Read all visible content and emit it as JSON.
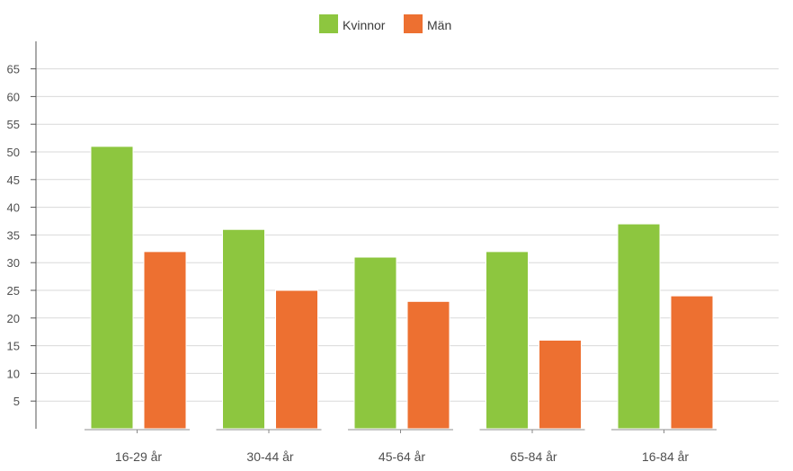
{
  "chart_data": {
    "type": "bar",
    "categories": [
      "16-29 år",
      "30-44 år",
      "45-64 år",
      "65-84 år",
      "16-84 år"
    ],
    "series": [
      {
        "name": "Kvinnor",
        "color": "#8dc63f",
        "values": [
          51,
          36,
          31,
          32,
          37
        ]
      },
      {
        "name": "Män",
        "color": "#ed7031",
        "values": [
          32,
          25,
          23,
          16,
          24
        ]
      }
    ],
    "yticks": [
      5,
      10,
      15,
      20,
      25,
      30,
      35,
      40,
      45,
      50,
      55,
      60,
      65
    ],
    "ylim": [
      0,
      70
    ],
    "grid": true,
    "legend": "top-center"
  }
}
